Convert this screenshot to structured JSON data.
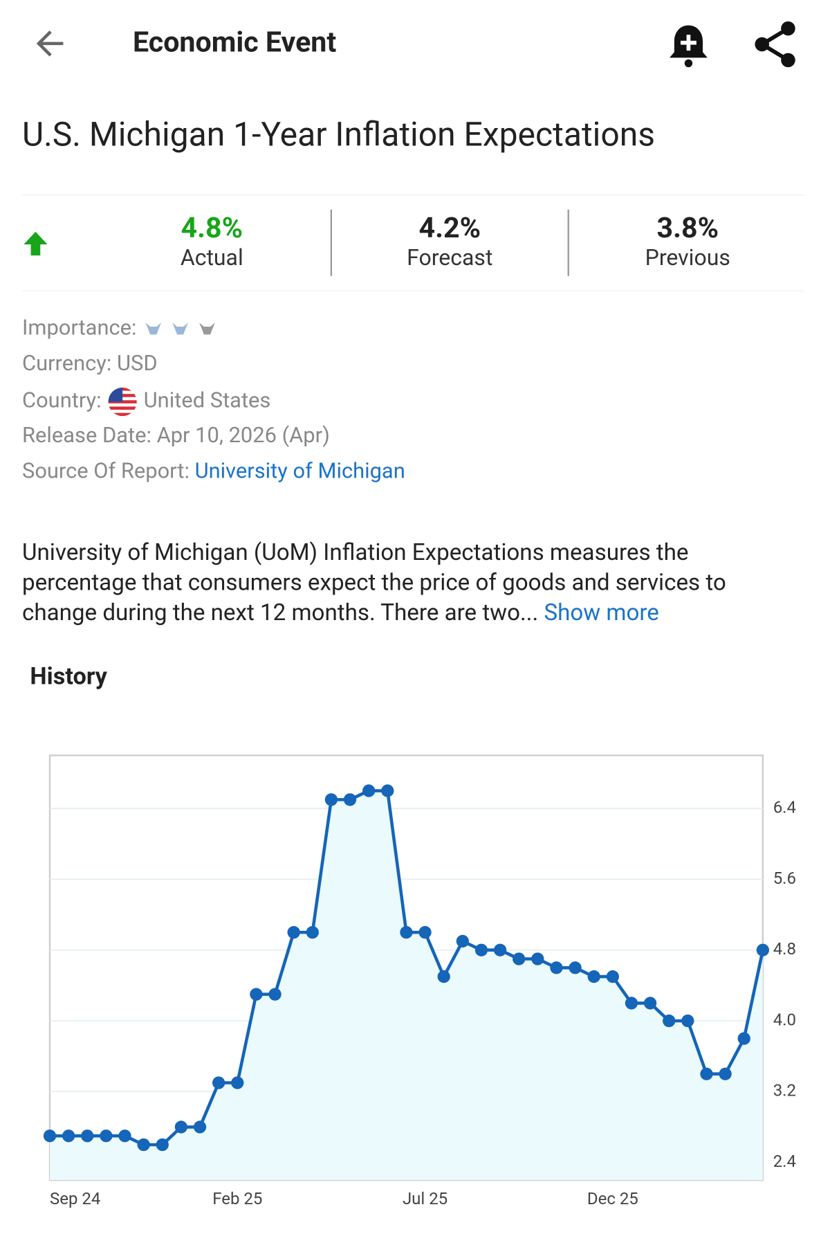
{
  "header": {
    "title": "Economic Event"
  },
  "event_title": "U.S. Michigan 1-Year Inflation Expectations",
  "stats": [
    {
      "value": "4.8%",
      "label": "Actual"
    },
    {
      "value": "4.2%",
      "label": "Forecast"
    },
    {
      "value": "3.8%",
      "label": "Previous"
    }
  ],
  "info": {
    "importance": "Importance:",
    "currency": "Currency: USD",
    "country_label": "Country:",
    "country": "United States",
    "release": "Release Date: Apr 10, 2026 (Apr)",
    "source_label": "Source Of Report:",
    "source": "University of Michigan"
  },
  "description": "University of Michigan (UoM) Inflation Expectations measures the percentage that consumers expect the price of goods and services to change during the next 12 months. There are two...",
  "show_more": "Show more",
  "history_title": "History",
  "chart_data": {
    "type": "line",
    "color": "#1565b8",
    "fill": "#eafafd",
    "categories": [
      "Sep 24",
      null,
      null,
      null,
      null,
      null,
      null,
      null,
      null,
      null,
      "Feb 25",
      null,
      null,
      null,
      null,
      null,
      null,
      null,
      null,
      null,
      "Jul 25",
      null,
      null,
      null,
      null,
      null,
      null,
      null,
      null,
      null,
      "Dec 25",
      null,
      null,
      null,
      null,
      null,
      null,
      null,
      null
    ],
    "values": [
      2.7,
      2.7,
      2.7,
      2.7,
      2.7,
      2.6,
      2.6,
      2.8,
      2.8,
      3.3,
      3.3,
      4.3,
      4.3,
      5.0,
      5.0,
      6.5,
      6.5,
      6.6,
      6.6,
      5.0,
      5.0,
      4.5,
      4.9,
      4.8,
      4.8,
      4.7,
      4.7,
      4.6,
      4.6,
      4.5,
      4.5,
      4.2,
      4.2,
      4.0,
      4.0,
      3.4,
      3.4,
      3.8,
      4.8
    ],
    "ylim": [
      2.2,
      7.0
    ],
    "yticks": [
      2.4,
      3.2,
      {
        "value": 4,
        "label": "4.0"
      },
      4.8,
      5.6,
      6.4
    ],
    "grid": true
  }
}
